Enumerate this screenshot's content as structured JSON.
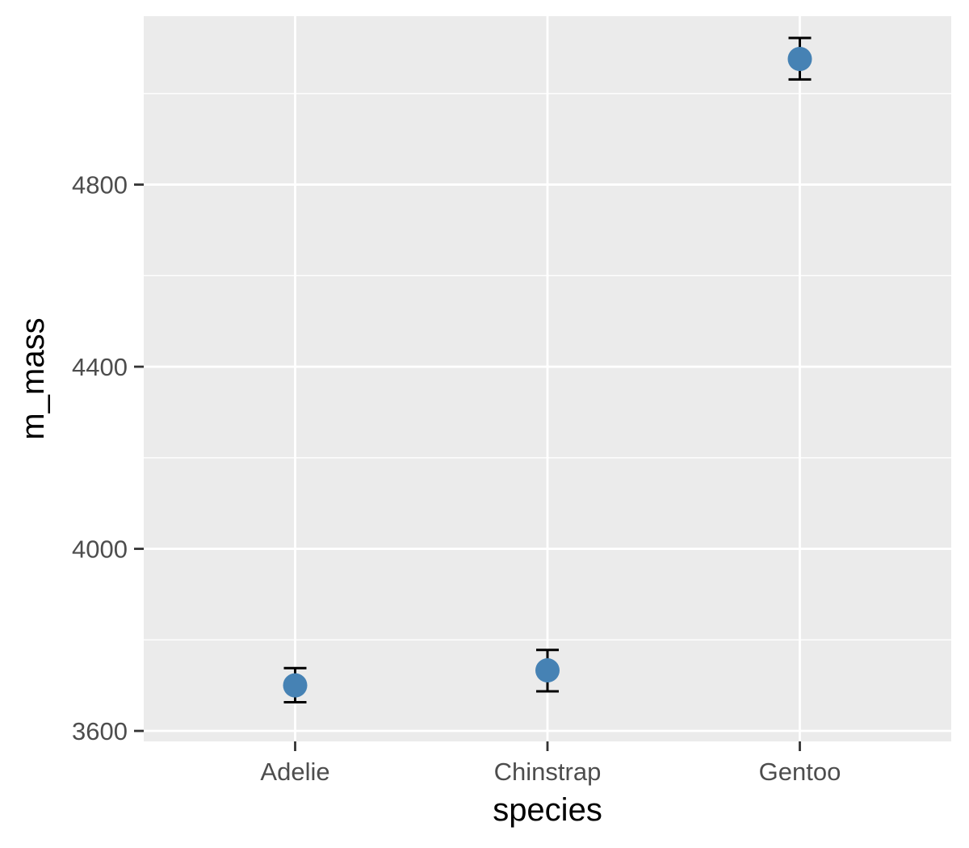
{
  "chart_data": {
    "type": "scatter",
    "geom": "point-with-errorbars",
    "title": "",
    "xlabel": "species",
    "ylabel": "m_mass",
    "categories": [
      "Adelie",
      "Chinstrap",
      "Gentoo"
    ],
    "values": [
      3700,
      3733,
      5076
    ],
    "error_low": [
      3663,
      3687,
      5031
    ],
    "error_high": [
      3738,
      3778,
      5122
    ],
    "ylim": [
      3577,
      5170
    ],
    "y_ticks": [
      3600,
      4000,
      4400,
      4800
    ],
    "y_tick_labels": [
      "3600",
      "4000",
      "4400",
      "4800"
    ],
    "grid": true,
    "legend": "none",
    "colors": {
      "point": "#4682B4",
      "errorbar": "#000000",
      "panel_background": "#EBEBEB",
      "grid": "#FFFFFF",
      "tick_text": "#4D4D4D"
    }
  }
}
